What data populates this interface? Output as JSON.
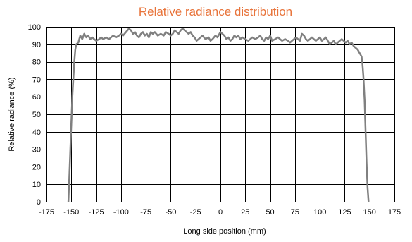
{
  "colors": {
    "title": "#e8743b",
    "line": "#808080",
    "grid": "#000000",
    "background": "#ffffff"
  },
  "chart_data": {
    "type": "line",
    "title": "Relative radiance distribution",
    "xlabel": "Long side position (mm)",
    "ylabel": "Relative radiance (%)",
    "xlim": [
      -175,
      175
    ],
    "ylim": [
      0,
      100
    ],
    "xticks": [
      -175,
      -150,
      -125,
      -100,
      -75,
      -50,
      -25,
      0,
      25,
      50,
      75,
      100,
      125,
      150,
      175
    ],
    "yticks": [
      0,
      10,
      20,
      30,
      40,
      50,
      60,
      70,
      80,
      90,
      100
    ],
    "grid": true,
    "legend": "none",
    "series": [
      {
        "x": [
          -153,
          -151,
          -149,
          -147,
          -146,
          -145,
          -143,
          -141,
          -139,
          -137,
          -135,
          -133,
          -131,
          -129,
          -127,
          -125,
          -122,
          -120,
          -118,
          -115,
          -112,
          -110,
          -108,
          -105,
          -102,
          -100,
          -98,
          -95,
          -92,
          -90,
          -88,
          -86,
          -84,
          -82,
          -80,
          -78,
          -76,
          -74,
          -72,
          -70,
          -68,
          -66,
          -63,
          -60,
          -57,
          -55,
          -52,
          -50,
          -48,
          -46,
          -44,
          -42,
          -40,
          -38,
          -36,
          -34,
          -32,
          -30,
          -28,
          -26,
          -24,
          -22,
          -20,
          -18,
          -15,
          -12,
          -10,
          -8,
          -5,
          -3,
          0,
          2,
          4,
          6,
          8,
          10,
          12,
          14,
          16,
          18,
          20,
          22,
          25,
          28,
          30,
          32,
          35,
          38,
          40,
          42,
          44,
          46,
          48,
          50,
          52,
          55,
          58,
          60,
          62,
          65,
          68,
          70,
          72,
          74,
          76,
          78,
          80,
          82,
          84,
          86,
          88,
          90,
          92,
          94,
          96,
          98,
          100,
          102,
          104,
          106,
          108,
          110,
          112,
          114,
          116,
          118,
          120,
          122,
          124,
          126,
          128,
          130,
          132,
          134,
          136,
          138,
          140,
          142,
          143,
          144,
          145,
          146,
          147,
          148,
          149
        ],
        "y": [
          0,
          30,
          60,
          80,
          87,
          90,
          91,
          95,
          93,
          96,
          94,
          95,
          93,
          94,
          93,
          92,
          93,
          94,
          93,
          94,
          93,
          94,
          95,
          94,
          95,
          96,
          95,
          97,
          99,
          98,
          96,
          97,
          95,
          94,
          96,
          97,
          95,
          96,
          94,
          97,
          96,
          97,
          95,
          96,
          95,
          97,
          96,
          95,
          96,
          98,
          97,
          96,
          98,
          99,
          98,
          97,
          96,
          97,
          95,
          94,
          92,
          93,
          94,
          95,
          93,
          94,
          92,
          93,
          95,
          94,
          97,
          96,
          95,
          93,
          94,
          92,
          93,
          95,
          94,
          95,
          93,
          94,
          93,
          92,
          93,
          94,
          93,
          94,
          95,
          93,
          92,
          94,
          93,
          95,
          92,
          93,
          94,
          93,
          92,
          93,
          92,
          91,
          92,
          93,
          94,
          93,
          92,
          96,
          95,
          93,
          92,
          93,
          94,
          93,
          92,
          93,
          94,
          92,
          93,
          94,
          92,
          90,
          91,
          92,
          90,
          91,
          92,
          93,
          92,
          91,
          92,
          90,
          91,
          89,
          88,
          87,
          85,
          83,
          78,
          70,
          58,
          40,
          22,
          8,
          0
        ]
      }
    ]
  }
}
